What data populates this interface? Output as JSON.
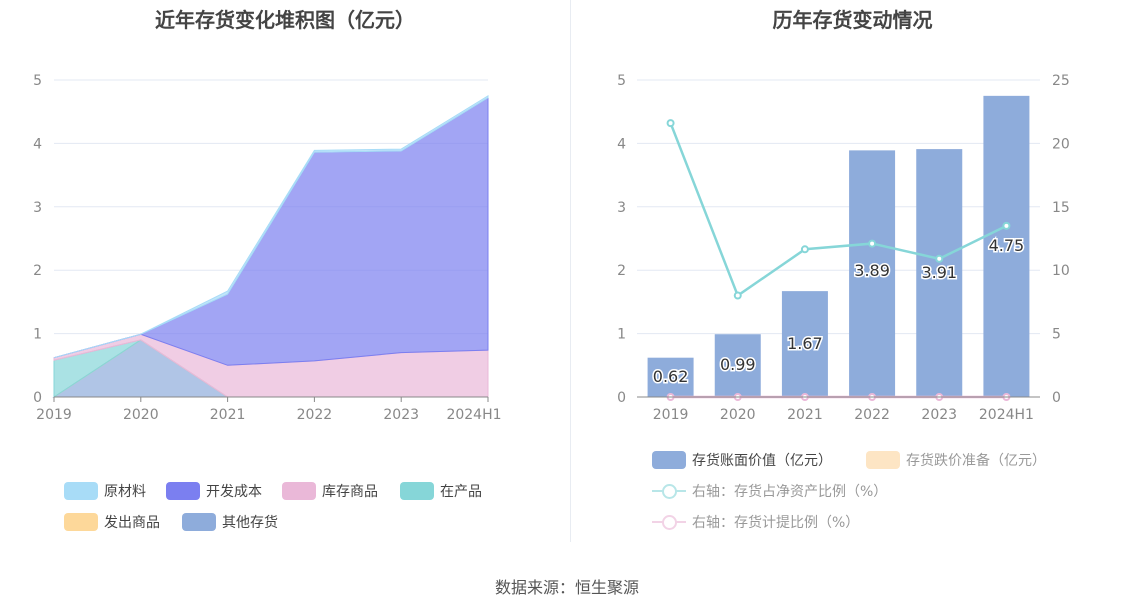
{
  "chart_data": [
    {
      "type": "area",
      "stacked": true,
      "title": "近年存货变化堆积图（亿元）",
      "categories": [
        "2019",
        "2020",
        "2021",
        "2022",
        "2023",
        "2024H1"
      ],
      "ylim": [
        0,
        5
      ],
      "yticks": [
        "0",
        "1",
        "2",
        "3",
        "4",
        "5"
      ],
      "grid": true,
      "legend_position": "bottom",
      "series": [
        {
          "name": "原材料",
          "color": "#a8dcf7",
          "values": [
            0,
            0,
            0.05,
            0.03,
            0.03,
            0.03
          ]
        },
        {
          "name": "开发成本",
          "color": "#7b7ff0",
          "values": [
            0,
            0,
            1.12,
            3.29,
            3.18,
            3.98
          ]
        },
        {
          "name": "库存商品",
          "color": "#eab8d8",
          "values": [
            0.04,
            0.09,
            0.5,
            0.57,
            0.7,
            0.74
          ]
        },
        {
          "name": "在产品",
          "color": "#86d6d8",
          "values": [
            0.58,
            0,
            0,
            0,
            0,
            0
          ]
        },
        {
          "name": "发出商品",
          "color": "#fdd89a",
          "values": [
            0,
            0,
            0,
            0,
            0,
            0
          ]
        },
        {
          "name": "其他存货",
          "color": "#8eacdb",
          "values": [
            0,
            0.9,
            0,
            0,
            0,
            0
          ]
        }
      ]
    },
    {
      "type": "bar+line",
      "title": "历年存货变动情况",
      "categories": [
        "2019",
        "2020",
        "2021",
        "2022",
        "2023",
        "2024H1"
      ],
      "ylim_left": [
        0,
        5
      ],
      "yticks_left": [
        "0",
        "1",
        "2",
        "3",
        "4",
        "5"
      ],
      "ylim_right": [
        0,
        25
      ],
      "yticks_right": [
        "0",
        "5",
        "10",
        "15",
        "20",
        "25"
      ],
      "grid": true,
      "legend_position": "bottom",
      "bars": [
        {
          "name": "存货账面价值（亿元）",
          "color": "#8eacdb",
          "values": [
            0.62,
            0.99,
            1.67,
            3.89,
            3.91,
            4.75
          ],
          "labels": [
            "0.62",
            "0.99",
            "1.67",
            "3.89",
            "3.91",
            "4.75"
          ]
        },
        {
          "name": "存货跌价准备（亿元）",
          "color": "#fde5c4",
          "values": [
            0,
            0,
            0,
            0,
            0,
            0
          ]
        }
      ],
      "lines": [
        {
          "name": "右轴：存货占净资产比例（%）",
          "color": "#86d6d8",
          "values": [
            21.6,
            8.0,
            11.65,
            12.1,
            10.9,
            13.5
          ]
        },
        {
          "name": "右轴：存货计提比例（%）",
          "color": "#eab8d8",
          "values": [
            0,
            0,
            0,
            0,
            0,
            0
          ]
        }
      ]
    }
  ],
  "source": "数据来源：恒生聚源"
}
